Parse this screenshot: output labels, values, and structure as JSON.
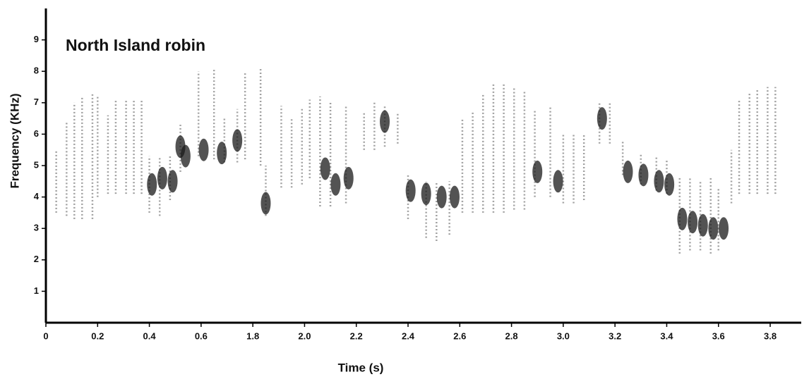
{
  "chart_data": {
    "type": "spectrogram",
    "title": "North Island robin",
    "xlabel": "Time (s)",
    "ylabel": "Frequency (KHz)",
    "xlim": [
      0,
      2.92
    ],
    "ylim": [
      0,
      10
    ],
    "xticks": [
      0,
      0.2,
      0.4,
      0.6,
      {
        "value": 0.8,
        "label": "1.8"
      },
      {
        "value": 1.0,
        "label": "2.0"
      },
      {
        "value": 1.2,
        "label": "2.2"
      },
      {
        "value": 1.4,
        "label": "2.4"
      },
      {
        "value": 1.6,
        "label": "2.6"
      },
      {
        "value": 1.8,
        "label": "2.8"
      },
      {
        "value": 2.0,
        "label": "3.0"
      },
      {
        "value": 2.2,
        "label": "3.2"
      },
      {
        "value": 2.4,
        "label": "3.4"
      },
      {
        "value": 2.6,
        "label": "3.6"
      },
      {
        "value": 2.8,
        "label": "3.8"
      }
    ],
    "yticks": [
      1,
      2,
      3,
      4,
      5,
      6,
      7,
      8,
      9
    ],
    "notes": {
      "x": [
        0.04,
        0.08,
        0.11,
        0.14,
        0.18,
        0.2,
        0.24,
        0.27,
        0.31,
        0.34,
        0.37,
        0.4,
        0.44,
        0.48,
        0.52,
        0.59,
        0.65,
        0.69,
        0.74,
        0.77,
        0.83,
        0.85,
        0.91,
        0.95,
        0.99,
        1.02,
        1.06,
        1.1,
        1.16,
        1.23,
        1.27,
        1.31,
        1.36,
        1.4,
        1.47,
        1.51,
        1.56,
        1.61,
        1.65,
        1.69,
        1.73,
        1.77,
        1.81,
        1.85,
        1.89,
        1.95,
        2.0,
        2.04,
        2.08,
        2.14,
        2.18,
        2.23,
        2.3,
        2.36,
        2.4,
        2.45,
        2.49,
        2.53,
        2.57,
        2.6,
        2.65,
        2.68,
        2.72,
        2.75,
        2.79,
        2.82
      ],
      "low": [
        3.5,
        3.4,
        3.3,
        3.3,
        3.3,
        4.0,
        4.1,
        4.1,
        4.1,
        4.1,
        4.1,
        3.5,
        3.4,
        3.9,
        4.8,
        5.3,
        5.2,
        5.1,
        5.1,
        5.2,
        5.0,
        3.4,
        4.3,
        4.3,
        4.4,
        4.6,
        3.7,
        3.7,
        3.8,
        5.5,
        5.5,
        5.6,
        5.7,
        3.3,
        2.7,
        2.6,
        2.8,
        3.5,
        3.5,
        3.5,
        3.5,
        3.5,
        3.6,
        3.6,
        4.0,
        4.0,
        3.8,
        3.8,
        3.9,
        5.7,
        5.7,
        4.7,
        4.4,
        4.2,
        4.1,
        2.2,
        2.3,
        2.3,
        2.2,
        2.3,
        3.8,
        4.1,
        4.1,
        4.1,
        4.1,
        4.1
      ],
      "high": [
        5.5,
        6.4,
        7.0,
        7.2,
        7.3,
        7.2,
        6.6,
        7.1,
        7.1,
        7.1,
        7.1,
        5.3,
        5.3,
        5.3,
        6.3,
        8.0,
        8.1,
        6.5,
        6.8,
        8.0,
        8.1,
        5.0,
        6.9,
        6.5,
        6.8,
        7.1,
        7.2,
        7.0,
        6.9,
        6.7,
        7.0,
        6.9,
        6.7,
        4.7,
        4.5,
        4.5,
        4.5,
        6.5,
        6.7,
        7.3,
        7.6,
        7.6,
        7.5,
        7.4,
        6.8,
        6.9,
        6.0,
        6.0,
        6.0,
        7.0,
        7.0,
        5.8,
        5.4,
        5.3,
        5.2,
        4.6,
        4.6,
        4.5,
        4.6,
        4.3,
        5.5,
        7.1,
        7.3,
        7.4,
        7.5,
        7.5
      ]
    },
    "blobs": {
      "x": [
        0.41,
        0.45,
        0.49,
        0.52,
        0.54,
        0.61,
        0.68,
        0.74,
        0.85,
        1.08,
        1.12,
        1.17,
        1.31,
        1.41,
        1.47,
        1.53,
        1.58,
        1.9,
        1.98,
        2.15,
        2.25,
        2.31,
        2.37,
        2.41,
        2.46,
        2.5,
        2.54,
        2.58,
        2.62
      ],
      "y": [
        4.4,
        4.6,
        4.5,
        5.6,
        5.3,
        5.5,
        5.4,
        5.8,
        3.8,
        4.9,
        4.4,
        4.6,
        6.4,
        4.2,
        4.1,
        4.0,
        4.0,
        4.8,
        4.5,
        6.5,
        4.8,
        4.7,
        4.5,
        4.4,
        3.3,
        3.2,
        3.1,
        3.0,
        3.0
      ]
    }
  }
}
